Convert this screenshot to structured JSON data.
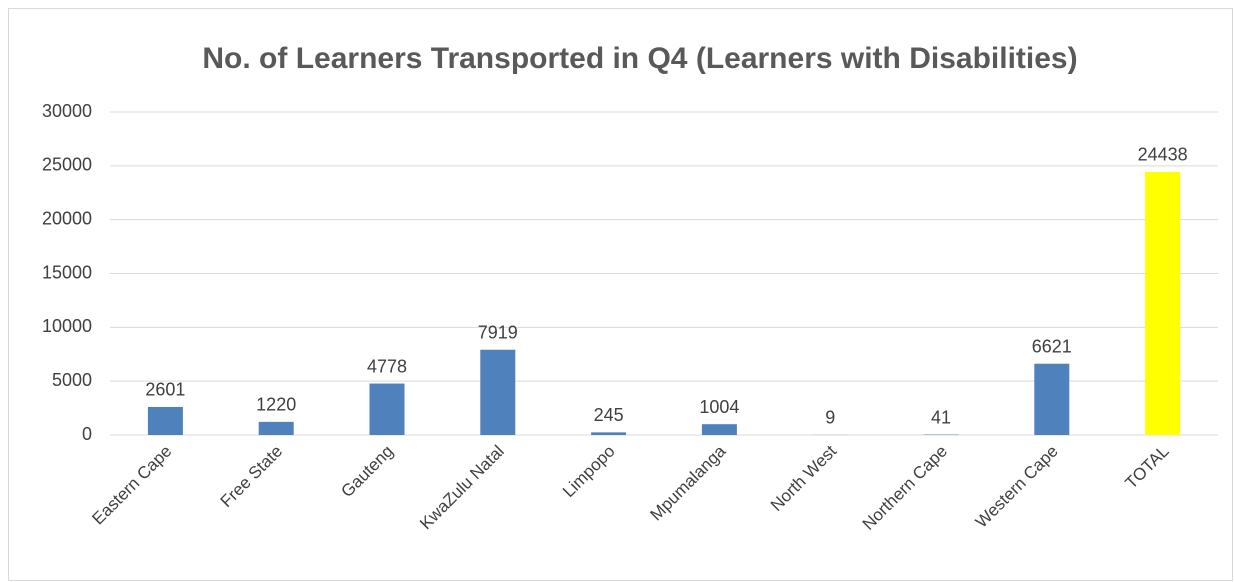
{
  "chart_data": {
    "type": "bar",
    "title": "No. of Learners Transported in Q4 (Learners with Disabilities)",
    "categories": [
      "Eastern Cape",
      "Free State",
      "Gauteng",
      "KwaZulu Natal",
      "Limpopo",
      "Mpumalanga",
      "North West",
      "Northern Cape",
      "Western Cape",
      "TOTAL"
    ],
    "values": [
      2601,
      1220,
      4778,
      7919,
      245,
      1004,
      9,
      41,
      6621,
      24438
    ],
    "colors": [
      "#4f81bd",
      "#4f81bd",
      "#4f81bd",
      "#4f81bd",
      "#4f81bd",
      "#4f81bd",
      "#4f81bd",
      "#4f81bd",
      "#4f81bd",
      "#ffff00"
    ],
    "ylim": [
      0,
      30000
    ],
    "yticks": [
      0,
      5000,
      10000,
      15000,
      20000,
      25000,
      30000
    ],
    "grid": true
  }
}
